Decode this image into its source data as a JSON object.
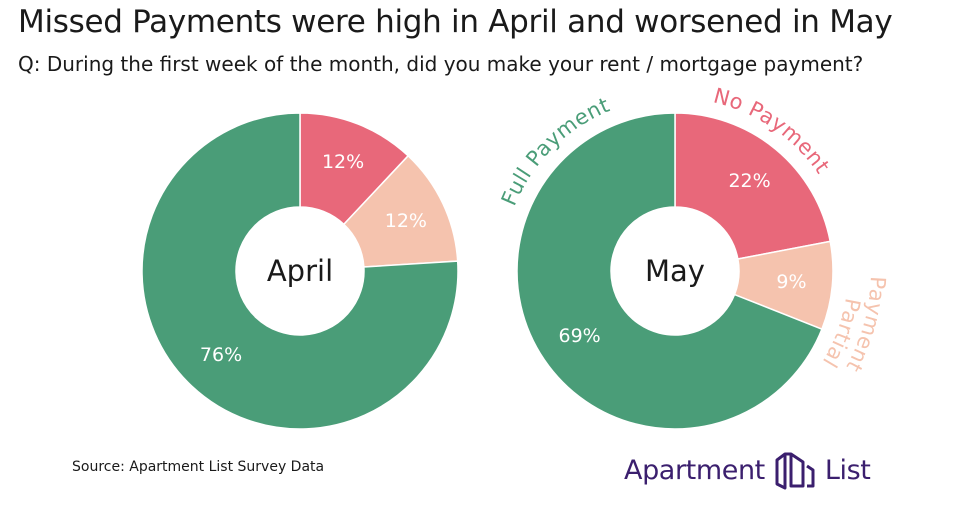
{
  "header": {
    "title": "Missed Payments were high in April and worsened in May",
    "subtitle": "Q: During the first week of the month, did you make your rent / mortgage payment?"
  },
  "chart_data": [
    {
      "type": "pie",
      "center_label": "April",
      "slices": [
        {
          "category": "No Payment",
          "value": 12,
          "label": "12%",
          "color": "#e8687a"
        },
        {
          "category": "Partial Payment",
          "value": 12,
          "label": "12%",
          "color": "#f5c3ae"
        },
        {
          "category": "Full Payment",
          "value": 76,
          "label": "76%",
          "color": "#4a9d78"
        }
      ]
    },
    {
      "type": "pie",
      "center_label": "May",
      "slices": [
        {
          "category": "No Payment",
          "value": 22,
          "label": "22%",
          "color": "#e8687a"
        },
        {
          "category": "Partial Payment",
          "value": 9,
          "label": "9%",
          "color": "#f5c3ae"
        },
        {
          "category": "Full Payment",
          "value": 69,
          "label": "69%",
          "color": "#4a9d78"
        }
      ],
      "outer_labels": [
        {
          "text": "Full Payment",
          "color": "#4a9d78"
        },
        {
          "text": "No Payment",
          "color": "#e8687a"
        },
        {
          "text": "Partial",
          "color": "#f5c3ae"
        },
        {
          "text": "Payment",
          "color": "#f5c3ae"
        }
      ]
    }
  ],
  "footer": {
    "source": "Source: Apartment List Survey Data",
    "logo_left": "Apartment",
    "logo_right": "List",
    "logo_icon": "apartment-list-logo-icon",
    "logo_color": "#3b1f6e"
  }
}
